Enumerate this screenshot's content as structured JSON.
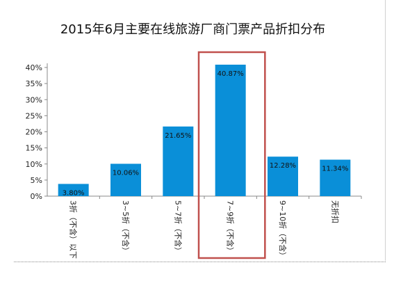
{
  "chart_data": {
    "type": "bar",
    "title": "2015年6月主要在线旅游厂商门票产品折扣分布",
    "categories": [
      "3折（不含）以下",
      "3~5折（不含）",
      "5~7折（不含）",
      "7~9折（不含）",
      "9~10折（不含）",
      "无折扣"
    ],
    "values": [
      3.8,
      10.06,
      21.65,
      40.87,
      12.28,
      11.34
    ],
    "value_labels": [
      "3.80%",
      "10.06%",
      "21.65%",
      "40.87%",
      "12.28%",
      "11.34%"
    ],
    "y_ticks": [
      "0%",
      "5%",
      "10%",
      "15%",
      "20%",
      "25%",
      "30%",
      "35%",
      "40%"
    ],
    "ylim": [
      0,
      40
    ],
    "xlabel": "",
    "ylabel": "",
    "grid": false,
    "legend": "none",
    "highlight_index": 3,
    "colors": {
      "bar": "#0a8fd8",
      "highlight_box": "#c0504d",
      "axis": "#888888"
    }
  }
}
